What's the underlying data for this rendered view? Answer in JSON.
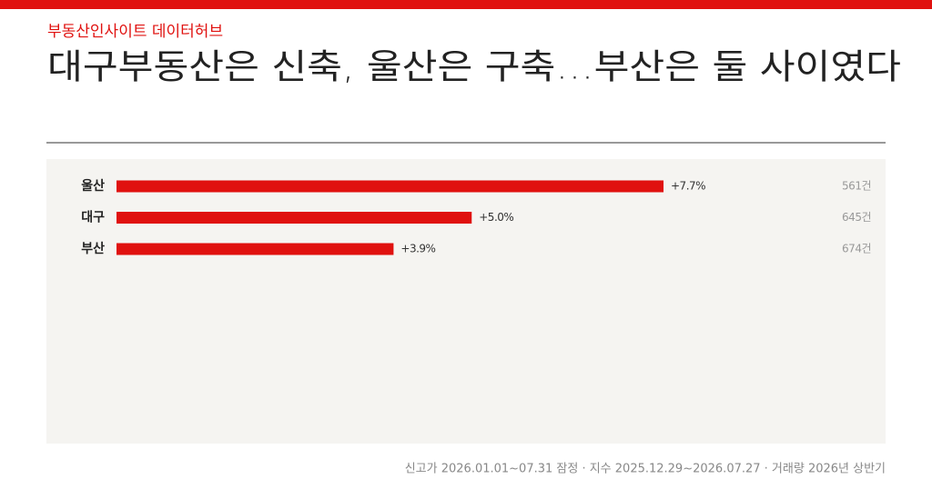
{
  "chart_data": {
    "type": "bar",
    "orientation": "horizontal",
    "kicker": "부동산인사이트 데이터허브",
    "title": "대구부동산은 신축, 울산은 구축…부산은 둘 사이였다",
    "categories": [
      "울산",
      "대구",
      "부산"
    ],
    "values": [
      7.7,
      5.0,
      3.9
    ],
    "value_labels": [
      "+7.7%",
      "+5.0%",
      "+3.9%"
    ],
    "counts": [
      "561건",
      "645건",
      "674건"
    ],
    "color": "#e0110f",
    "source": "신고가 2026.01.01~07.31 잠정 · 지수 2025.12.29~2026.07.27 · 거래량 2026년 상반기"
  }
}
